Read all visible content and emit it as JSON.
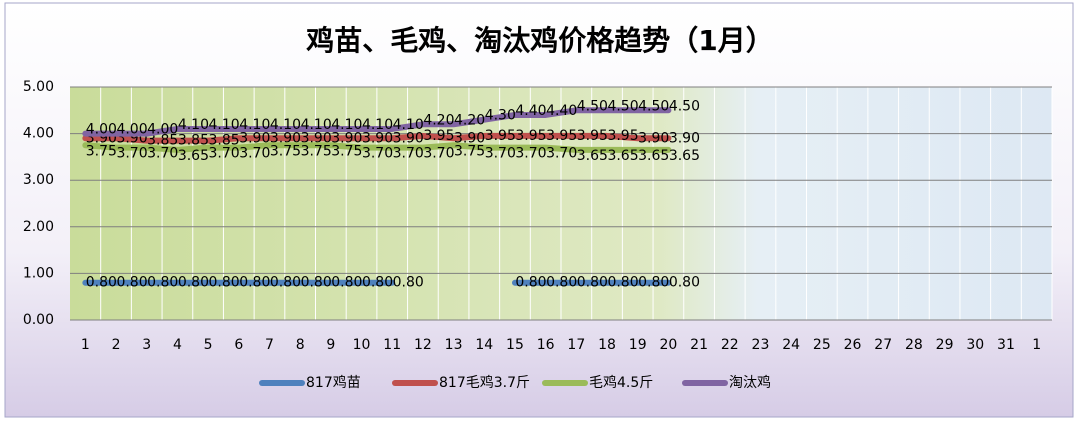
{
  "chart_data": {
    "type": "line",
    "title": "鸡苗、毛鸡、淘汰鸡价格趋势（1月）",
    "categories": [
      "1",
      "2",
      "3",
      "4",
      "5",
      "6",
      "7",
      "8",
      "9",
      "10",
      "11",
      "12",
      "13",
      "14",
      "15",
      "16",
      "17",
      "18",
      "19",
      "20",
      "21",
      "22",
      "23",
      "24",
      "25",
      "26",
      "27",
      "28",
      "29",
      "30",
      "31",
      "1"
    ],
    "ylim": [
      0,
      5
    ],
    "yticks": [
      {
        "value": 0,
        "label": "0.00"
      },
      {
        "value": 1,
        "label": "1.00"
      },
      {
        "value": 2,
        "label": "2.00"
      },
      {
        "value": 3,
        "label": "3.00"
      },
      {
        "value": 4,
        "label": "4.00"
      },
      {
        "value": 5,
        "label": "5.00"
      }
    ],
    "grid": true,
    "legend": "bottom",
    "series": [
      {
        "name": "817鸡苗",
        "color": "#4f81bd",
        "values": [
          0.8,
          0.8,
          0.8,
          0.8,
          0.8,
          0.8,
          0.8,
          0.8,
          0.8,
          0.8,
          0.8,
          null,
          null,
          null,
          0.8,
          0.8,
          0.8,
          0.8,
          0.8,
          0.8,
          null,
          null,
          null,
          null,
          null,
          null,
          null,
          null,
          null,
          null,
          null,
          null
        ],
        "value_labels": [
          "0.80",
          "0.80",
          "0.80",
          "0.80",
          "0.80",
          "0.80",
          "0.80",
          "0.80",
          "0.80",
          "0.80",
          "0.80",
          null,
          null,
          null,
          "0.80",
          "0.80",
          "0.80",
          "0.80",
          "0.80",
          "0.80",
          null,
          null,
          null,
          null,
          null,
          null,
          null,
          null,
          null,
          null,
          null,
          null
        ]
      },
      {
        "name": "817毛鸡3.7斤",
        "color": "#c0504d",
        "values": [
          3.9,
          3.9,
          3.85,
          3.85,
          3.85,
          3.9,
          3.9,
          3.9,
          3.9,
          3.9,
          3.9,
          3.95,
          3.9,
          3.95,
          3.95,
          3.95,
          3.95,
          3.95,
          3.9,
          3.9,
          null,
          null,
          null,
          null,
          null,
          null,
          null,
          null,
          null,
          null,
          null,
          null
        ],
        "value_labels": [
          "3.90",
          "3.90",
          "3.85",
          "3.85",
          "3.85",
          "3.90",
          "3.90",
          "3.90",
          "3.90",
          "3.90",
          "3.90",
          "3.95",
          "3.90",
          "3.95",
          "3.95",
          "3.95",
          "3.95",
          "3.95",
          "3.90",
          "3.90",
          null,
          null,
          null,
          null,
          null,
          null,
          null,
          null,
          null,
          null,
          null,
          null
        ]
      },
      {
        "name": "毛鸡4.5斤",
        "color": "#9bbb59",
        "values": [
          3.75,
          3.7,
          3.7,
          3.65,
          3.7,
          3.7,
          3.75,
          3.75,
          3.75,
          3.7,
          3.7,
          3.7,
          3.75,
          3.7,
          3.7,
          3.7,
          3.65,
          3.65,
          3.65,
          3.65,
          null,
          null,
          null,
          null,
          null,
          null,
          null,
          null,
          null,
          null,
          null,
          null
        ],
        "value_labels": [
          "3.75",
          "3.70",
          "3.70",
          "3.65",
          "3.70",
          "3.70",
          "3.75",
          "3.75",
          "3.75",
          "3.70",
          "3.70",
          "3.70",
          "3.75",
          "3.70",
          "3.70",
          "3.70",
          "3.65",
          "3.65",
          "3.65",
          "3.65",
          null,
          null,
          null,
          null,
          null,
          null,
          null,
          null,
          null,
          null,
          null,
          null
        ]
      },
      {
        "name": "淘汰鸡",
        "color": "#8064a2",
        "values": [
          4.0,
          4.0,
          4.0,
          4.1,
          4.1,
          4.1,
          4.1,
          4.1,
          4.1,
          4.1,
          4.1,
          4.2,
          4.2,
          4.3,
          4.4,
          4.4,
          4.5,
          4.5,
          4.5,
          4.5,
          null,
          null,
          null,
          null,
          null,
          null,
          null,
          null,
          null,
          null,
          null,
          null
        ],
        "value_labels": [
          "4.00",
          "4.00",
          "4.00",
          "4.10",
          "4.10",
          "4.10",
          "4.10",
          "4.10",
          "4.10",
          "4.10",
          "4.10",
          "4.20",
          "4.20",
          "4.30",
          "4.40",
          "4.40",
          "4.50",
          "4.50",
          "4.50",
          "4.50",
          null,
          null,
          null,
          null,
          null,
          null,
          null,
          null,
          null,
          null,
          null,
          null
        ]
      }
    ]
  }
}
